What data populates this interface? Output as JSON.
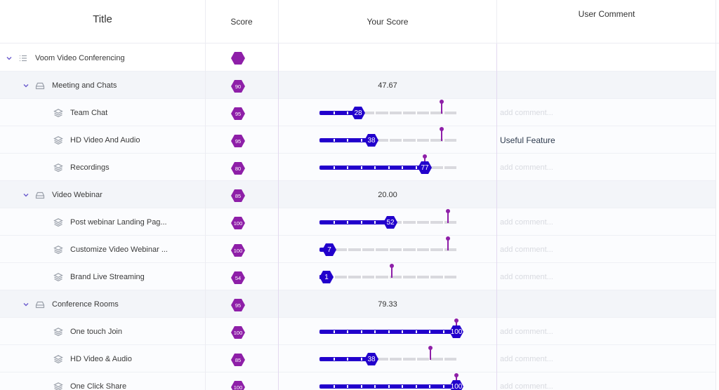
{
  "header": {
    "title": "Title",
    "score": "Score",
    "your_score": "Your Score",
    "user_comment": "User Comment"
  },
  "colors": {
    "accent_purple": "#8e1fa8",
    "slider_blue": "#2200cc"
  },
  "rows": [
    {
      "kind": "top",
      "level": 0,
      "icon": "list-icon",
      "label": "Voom Video Conferencing",
      "score": ""
    },
    {
      "kind": "group",
      "level": 1,
      "icon": "folder-icon",
      "label": "Meeting and Chats",
      "score": "90",
      "average": "47.67"
    },
    {
      "kind": "child",
      "level": 2,
      "icon": "layers-icon",
      "label": "Team Chat",
      "score": "95",
      "your_score": 28,
      "reference": 89,
      "comment": "",
      "placeholder": "add comment..."
    },
    {
      "kind": "child",
      "level": 2,
      "icon": "layers-icon",
      "label": "HD Video And Audio",
      "score": "95",
      "your_score": 38,
      "reference": 89,
      "comment": "Useful Feature",
      "placeholder": "add comment..."
    },
    {
      "kind": "child",
      "level": 2,
      "icon": "layers-icon",
      "label": "Recordings",
      "score": "80",
      "your_score": 77,
      "reference": 77,
      "comment": "",
      "placeholder": "add comment..."
    },
    {
      "kind": "group",
      "level": 1,
      "icon": "folder-icon",
      "label": "Video Webinar",
      "score": "85",
      "average": "20.00"
    },
    {
      "kind": "child",
      "level": 2,
      "icon": "layers-icon",
      "label": "Post webinar Landing Pag...",
      "score": "100",
      "your_score": 52,
      "reference": 94,
      "comment": "",
      "placeholder": "add comment..."
    },
    {
      "kind": "child",
      "level": 2,
      "icon": "layers-icon",
      "label": "Customize Video Webinar ...",
      "score": "100",
      "your_score": 7,
      "reference": 94,
      "comment": "",
      "placeholder": "add comment..."
    },
    {
      "kind": "child",
      "level": 2,
      "icon": "layers-icon",
      "label": "Brand Live Streaming",
      "score": "54",
      "your_score": 1,
      "reference": 53,
      "comment": "",
      "placeholder": "add comment..."
    },
    {
      "kind": "group",
      "level": 1,
      "icon": "folder-icon",
      "label": "Conference Rooms",
      "score": "95",
      "average": "79.33"
    },
    {
      "kind": "child",
      "level": 2,
      "icon": "layers-icon",
      "label": "One touch Join",
      "score": "100",
      "your_score": 100,
      "reference": 100,
      "comment": "",
      "placeholder": "add comment..."
    },
    {
      "kind": "child",
      "level": 2,
      "icon": "layers-icon",
      "label": "HD Video & Audio",
      "score": "85",
      "your_score": 38,
      "reference": 81,
      "comment": "",
      "placeholder": "add comment..."
    },
    {
      "kind": "child",
      "level": 2,
      "icon": "layers-icon",
      "label": "One Click Share",
      "score": "100",
      "your_score": 100,
      "reference": 100,
      "comment": "",
      "placeholder": "add comment..."
    }
  ]
}
